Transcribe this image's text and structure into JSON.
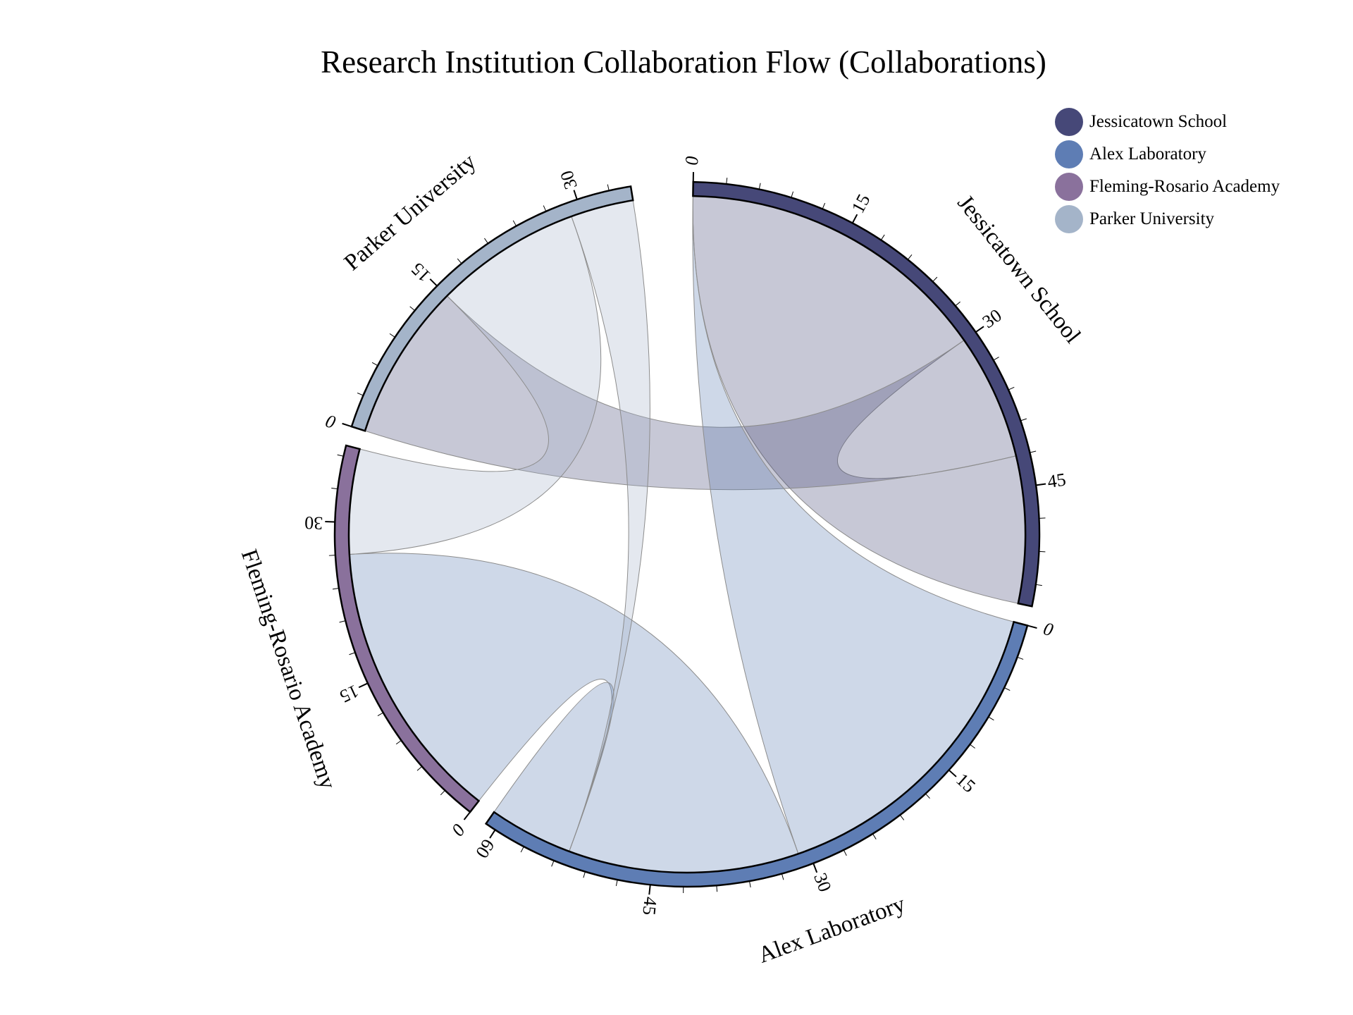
{
  "chart_data": {
    "type": "chord",
    "title": "Research Institution Collaboration Flow (Collaborations)",
    "unit": "Collaborations",
    "tick_step": 15,
    "groups": [
      {
        "name": "Jessicatown School",
        "color": "#464878",
        "total": 56
      },
      {
        "name": "Alex Laboratory",
        "color": "#5e7db4",
        "total": 61
      },
      {
        "name": "Fleming-Rosario Academy",
        "color": "#8a719c",
        "total": 37
      },
      {
        "name": "Parker University",
        "color": "#a4b4c9",
        "total": 35
      }
    ],
    "ribbons": [
      {
        "source": "Jessicatown School",
        "target": "Jessicatown School",
        "source_range": [
          0,
          30
        ],
        "target_range": [
          42,
          56
        ]
      },
      {
        "source": "Jessicatown School",
        "target": "Parker University",
        "source_range": [
          30,
          42
        ],
        "target_range": [
          0,
          15
        ]
      },
      {
        "source": "Alex Laboratory",
        "target": "Jessicatown School",
        "source_range": [
          0,
          31
        ],
        "target_range": [
          0,
          0
        ]
      },
      {
        "source": "Alex Laboratory",
        "target": "Fleming-Rosario Academy",
        "source_range": [
          31,
          53
        ],
        "target_range": [
          0,
          27
        ]
      },
      {
        "source": "Alex Laboratory",
        "target": "Alex Laboratory",
        "source_range": [
          53,
          61
        ],
        "target_range": [
          53,
          61
        ]
      },
      {
        "source": "Parker University",
        "target": "Alex Laboratory",
        "source_range": [
          29,
          35
        ],
        "target_range": [
          53,
          53
        ]
      },
      {
        "source": "Parker University",
        "target": "Fleming-Rosario Academy",
        "source_range": [
          15,
          29
        ],
        "target_range": [
          27,
          37
        ]
      }
    ],
    "legend": {
      "position": "top-right"
    }
  }
}
